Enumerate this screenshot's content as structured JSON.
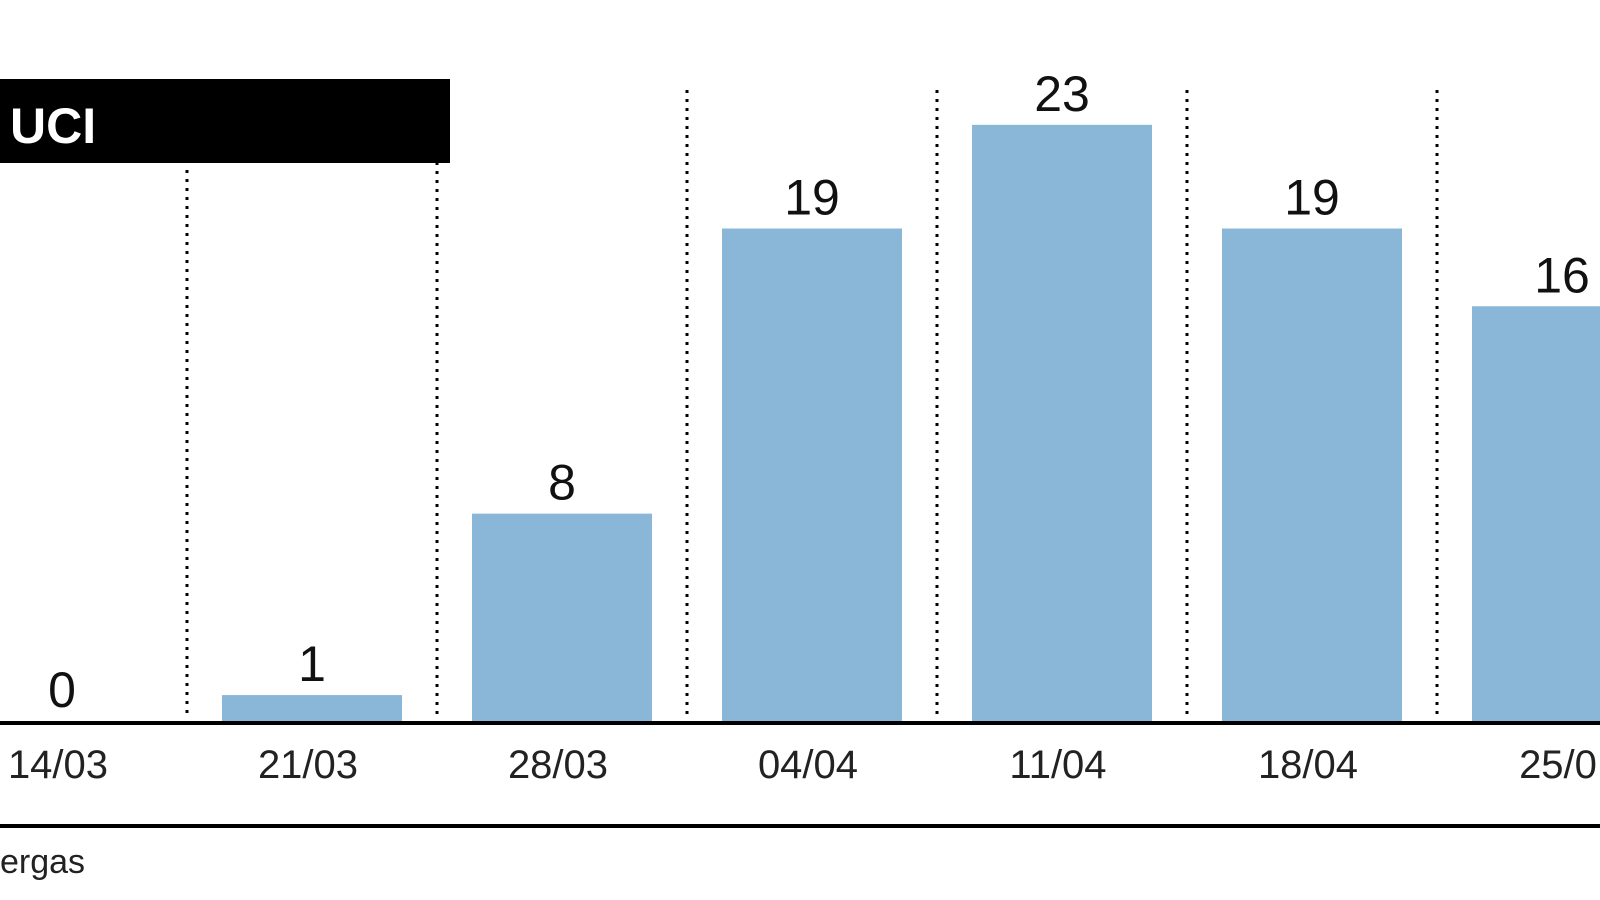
{
  "chart_data": {
    "type": "bar",
    "title": "UCI",
    "source": "ergas",
    "categories": [
      "14/03",
      "21/03",
      "28/03",
      "04/04",
      "11/04",
      "18/04",
      "25/0"
    ],
    "values": [
      0,
      1,
      8,
      19,
      23,
      19,
      16
    ],
    "color": "#8ab6d8",
    "ylim": [
      0,
      25
    ]
  }
}
